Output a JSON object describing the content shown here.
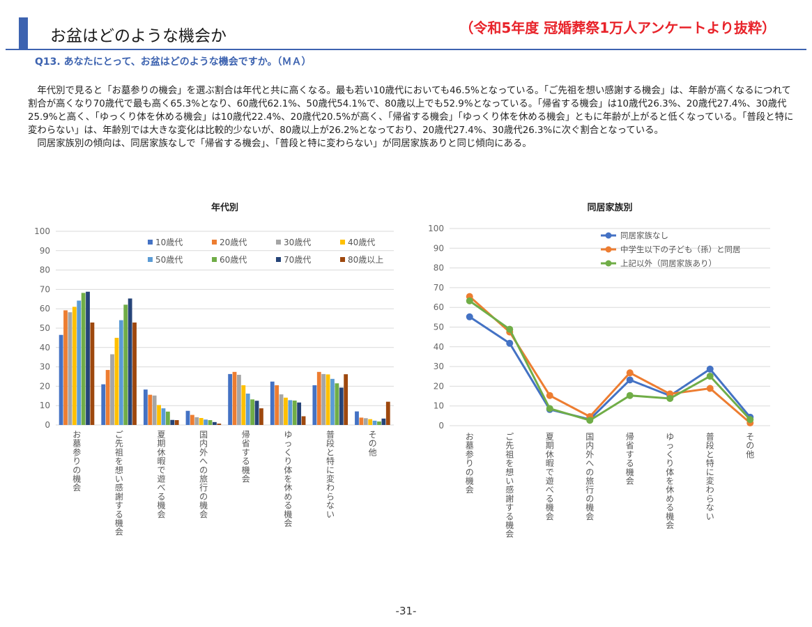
{
  "header": {
    "title": "お盆はどのような機会か",
    "source": "（令和5年度 冠婚葬祭1万人アンケートより抜粋）",
    "question": "Q13. あなたにとって、お盆はどのような機会ですか。（ＭＡ）"
  },
  "body": {
    "paragraph1": "年代別で見ると「お墓参りの機会」を選ぶ割合は年代と共に高くなる。最も若い10歳代においても46.5%となっている。「ご先祖を想い感謝する機会」は、年齢が高くなるにつれて割合が高くなり70歳代で最も高く65.3%となり、60歳代62.1%、50歳代54.1%で、80歳以上でも52.9%となっている。「帰省する機会」は10歳代26.3%、20歳代27.4%、30歳代25.9%と高く、「ゆっくり体を休める機会」は10歳代22.4%、20歳代20.5%が高く、「帰省する機会」「ゆっくり体を休める機会」ともに年齢が上がると低くなっている。「普段と特に変わらない」は、年齢別では大きな変化は比較的少ないが、80歳以上が26.2%となっており、20歳代27.4%、30歳代26.3%に次ぐ割合となっている。",
    "paragraph2": "同居家族別の傾向は、同居家族なしで「帰省する機会」、「普段と特に変わらない」が同居家族ありと同じ傾向にある。"
  },
  "chart_data": [
    {
      "type": "bar",
      "title": "年代別",
      "categories": [
        "お墓参りの機会",
        "ご先祖を想い感謝する機会",
        "夏期休暇で遊べる機会",
        "国内外への旅行の機会",
        "帰省する機会",
        "ゆっくり体を休める機会",
        "普段と特に変わらない",
        "その他"
      ],
      "ylim": [
        0,
        100
      ],
      "yticks": [
        0,
        10,
        20,
        30,
        40,
        50,
        60,
        70,
        80,
        90,
        100
      ],
      "legend_position": "top-right",
      "series": [
        {
          "name": "10歳代",
          "color": "#4472c4",
          "values": [
            46.5,
            21.0,
            18.3,
            7.3,
            26.3,
            22.4,
            20.5,
            7.0
          ]
        },
        {
          "name": "20歳代",
          "color": "#ed7d31",
          "values": [
            59.2,
            28.4,
            15.6,
            5.2,
            27.4,
            20.5,
            27.4,
            3.8
          ]
        },
        {
          "name": "30歳代",
          "color": "#a5a5a5",
          "values": [
            58.2,
            36.5,
            15.2,
            4.0,
            25.9,
            15.8,
            26.3,
            3.5
          ]
        },
        {
          "name": "40歳代",
          "color": "#ffc000",
          "values": [
            61.0,
            45.0,
            10.3,
            3.6,
            20.5,
            14.1,
            26.1,
            3.0
          ]
        },
        {
          "name": "50歳代",
          "color": "#5b9bd5",
          "values": [
            64.2,
            54.1,
            8.6,
            2.8,
            16.2,
            12.8,
            23.8,
            2.2
          ]
        },
        {
          "name": "60歳代",
          "color": "#70ad47",
          "values": [
            68.2,
            62.1,
            6.9,
            2.5,
            13.2,
            12.6,
            21.5,
            1.8
          ]
        },
        {
          "name": "70歳代",
          "color": "#264478",
          "values": [
            68.8,
            65.3,
            2.6,
            1.5,
            12.5,
            11.6,
            19.3,
            3.3
          ]
        },
        {
          "name": "80歳以上",
          "color": "#9e480e",
          "values": [
            52.9,
            52.9,
            2.5,
            0.7,
            8.6,
            4.5,
            26.2,
            12.0
          ]
        }
      ]
    },
    {
      "type": "line",
      "title": "同居家族別",
      "categories": [
        "お墓参りの機会",
        "ご先祖を想い感謝する機会",
        "夏期休暇で遊べる機会",
        "国内外への旅行の機会",
        "帰省する機会",
        "ゆっくり体を休める機会",
        "普段と特に変わらない",
        "その他"
      ],
      "ylim": [
        0,
        100
      ],
      "yticks": [
        0,
        10,
        20,
        30,
        40,
        50,
        60,
        70,
        80,
        90,
        100
      ],
      "legend_position": "top-right",
      "series": [
        {
          "name": "同居家族なし",
          "color": "#4472c4",
          "values": [
            55.2,
            41.8,
            8.2,
            3.2,
            23.2,
            15.2,
            28.7,
            4.3
          ]
        },
        {
          "name": "中学生以下の子ども（孫）と同居",
          "color": "#ed7d31",
          "values": [
            65.5,
            47.5,
            15.3,
            4.6,
            26.8,
            16.1,
            18.9,
            1.4
          ]
        },
        {
          "name": "上記以外（同居家族あり）",
          "color": "#70ad47",
          "values": [
            63.3,
            48.9,
            8.7,
            2.7,
            15.3,
            13.8,
            25.1,
            3.1
          ]
        }
      ]
    }
  ],
  "footer": {
    "page_number": "-31-"
  }
}
